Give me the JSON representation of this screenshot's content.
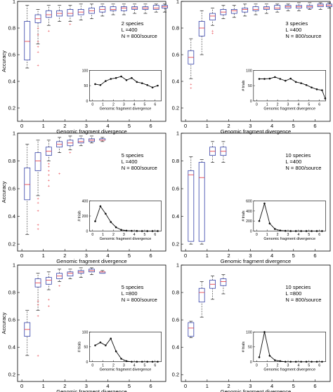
{
  "figure": {
    "colors": {
      "box": "#3340a8",
      "median": "#e8484f",
      "outlier": "#e8484f",
      "whisker": "#222222",
      "inset_line": "#111111"
    }
  },
  "chart_data": [
    {
      "type": "boxplot",
      "annotation": [
        "2 species",
        "L =400",
        "N = 800/source"
      ],
      "xlabel": "Genomic fragment divergence",
      "ylabel": "Accuracy",
      "xlim": [
        -0.2,
        6.7
      ],
      "ylim": [
        0.1,
        1.0
      ],
      "xticks": [
        "0",
        "1",
        "2",
        "3",
        "4",
        "5",
        "6"
      ],
      "yticks": [
        "0.2",
        "0.4",
        "0.6",
        "0.8",
        "1"
      ],
      "boxes": [
        {
          "x": 0.25,
          "whislo": 0.5,
          "q1": 0.56,
          "med": 0.7,
          "q3": 0.85,
          "whishi": 0.97,
          "outliers": []
        },
        {
          "x": 0.75,
          "whislo": 0.68,
          "q1": 0.84,
          "med": 0.87,
          "q3": 0.9,
          "whishi": 0.94,
          "outliers": [
            0.52,
            0.62,
            0.66,
            0.7,
            0.75,
            0.8
          ]
        },
        {
          "x": 1.25,
          "whislo": 0.82,
          "q1": 0.88,
          "med": 0.9,
          "q3": 0.93,
          "whishi": 0.97,
          "outliers": [
            0.78
          ]
        },
        {
          "x": 1.75,
          "whislo": 0.85,
          "q1": 0.89,
          "med": 0.91,
          "q3": 0.93,
          "whishi": 0.97,
          "outliers": []
        },
        {
          "x": 2.25,
          "whislo": 0.85,
          "q1": 0.89,
          "med": 0.91,
          "q3": 0.94,
          "whishi": 0.97,
          "outliers": [
            0.83
          ]
        },
        {
          "x": 2.75,
          "whislo": 0.86,
          "q1": 0.9,
          "med": 0.92,
          "q3": 0.94,
          "whishi": 0.98,
          "outliers": []
        },
        {
          "x": 3.25,
          "whislo": 0.87,
          "q1": 0.91,
          "med": 0.93,
          "q3": 0.95,
          "whishi": 0.98,
          "outliers": []
        },
        {
          "x": 3.75,
          "whislo": 0.89,
          "q1": 0.92,
          "med": 0.94,
          "q3": 0.96,
          "whishi": 0.98,
          "outliers": []
        },
        {
          "x": 4.25,
          "whislo": 0.9,
          "q1": 0.93,
          "med": 0.94,
          "q3": 0.96,
          "whishi": 0.98,
          "outliers": []
        },
        {
          "x": 4.75,
          "whislo": 0.9,
          "q1": 0.93,
          "med": 0.95,
          "q3": 0.96,
          "whishi": 0.98,
          "outliers": []
        },
        {
          "x": 5.25,
          "whislo": 0.91,
          "q1": 0.94,
          "med": 0.95,
          "q3": 0.96,
          "whishi": 0.98,
          "outliers": []
        },
        {
          "x": 5.75,
          "whislo": 0.91,
          "q1": 0.94,
          "med": 0.95,
          "q3": 0.96,
          "whishi": 0.98,
          "outliers": []
        },
        {
          "x": 6.25,
          "whislo": 0.92,
          "q1": 0.94,
          "med": 0.95,
          "q3": 0.97,
          "whishi": 0.98,
          "outliers": []
        },
        {
          "x": 6.65,
          "whislo": 0.92,
          "q1": 0.95,
          "med": 0.96,
          "q3": 0.97,
          "whishi": 0.98,
          "outliers": []
        }
      ],
      "inset": {
        "type": "line",
        "xlabel": "Genomic fragment divergence",
        "ylabel": "",
        "xlim": [
          -0.3,
          6.6
        ],
        "ylim": [
          0,
          100
        ],
        "xticks": [
          "0",
          "1",
          "2",
          "3",
          "4",
          "5",
          "6"
        ],
        "yticks": [
          "0",
          "50",
          "100"
        ],
        "x": [
          0.25,
          0.75,
          1.25,
          1.75,
          2.25,
          2.75,
          3.25,
          3.75,
          4.25,
          4.75,
          5.25,
          5.75,
          6.25
        ],
        "y": [
          55,
          52,
          65,
          72,
          75,
          80,
          68,
          75,
          62,
          58,
          52,
          44,
          50
        ]
      }
    },
    {
      "type": "boxplot",
      "annotation": [
        "3 species",
        "L =400",
        "N = 800/source"
      ],
      "xlabel": "Genomic fragment divergence",
      "ylabel": "",
      "xlim": [
        -0.2,
        6.7
      ],
      "ylim": [
        0.1,
        1.0
      ],
      "xticks": [
        "0",
        "1",
        "2",
        "3",
        "4",
        "5",
        "6"
      ],
      "yticks": [
        "0.2",
        "0.4",
        "0.6",
        "0.8",
        "1"
      ],
      "boxes": [
        {
          "x": 0.25,
          "whislo": 0.42,
          "q1": 0.53,
          "med": 0.58,
          "q3": 0.63,
          "whishi": 0.72,
          "outliers": [
            0.35,
            0.38
          ]
        },
        {
          "x": 0.75,
          "whislo": 0.6,
          "q1": 0.74,
          "med": 0.8,
          "q3": 0.85,
          "whishi": 0.93,
          "outliers": []
        },
        {
          "x": 1.25,
          "whislo": 0.82,
          "q1": 0.86,
          "med": 0.89,
          "q3": 0.91,
          "whishi": 0.95,
          "outliers": [
            0.78,
            0.76
          ]
        },
        {
          "x": 1.75,
          "whislo": 0.87,
          "q1": 0.9,
          "med": 0.92,
          "q3": 0.94,
          "whishi": 0.97,
          "outliers": []
        },
        {
          "x": 2.25,
          "whislo": 0.88,
          "q1": 0.91,
          "med": 0.93,
          "q3": 0.94,
          "whishi": 0.97,
          "outliers": []
        },
        {
          "x": 2.75,
          "whislo": 0.89,
          "q1": 0.92,
          "med": 0.94,
          "q3": 0.95,
          "whishi": 0.98,
          "outliers": []
        },
        {
          "x": 3.25,
          "whislo": 0.9,
          "q1": 0.93,
          "med": 0.94,
          "q3": 0.96,
          "whishi": 0.98,
          "outliers": []
        },
        {
          "x": 3.75,
          "whislo": 0.91,
          "q1": 0.94,
          "med": 0.95,
          "q3": 0.96,
          "whishi": 0.98,
          "outliers": []
        },
        {
          "x": 4.25,
          "whislo": 0.92,
          "q1": 0.94,
          "med": 0.95,
          "q3": 0.97,
          "whishi": 0.98,
          "outliers": []
        },
        {
          "x": 4.75,
          "whislo": 0.93,
          "q1": 0.95,
          "med": 0.96,
          "q3": 0.97,
          "whishi": 0.98,
          "outliers": []
        },
        {
          "x": 5.25,
          "whislo": 0.93,
          "q1": 0.95,
          "med": 0.96,
          "q3": 0.97,
          "whishi": 0.99,
          "outliers": []
        },
        {
          "x": 5.75,
          "whislo": 0.94,
          "q1": 0.95,
          "med": 0.96,
          "q3": 0.97,
          "whishi": 0.99,
          "outliers": []
        },
        {
          "x": 6.25,
          "whislo": 0.94,
          "q1": 0.96,
          "med": 0.97,
          "q3": 0.98,
          "whishi": 0.99,
          "outliers": []
        },
        {
          "x": 6.65,
          "whislo": 0.95,
          "q1": 0.96,
          "med": 0.97,
          "q3": 0.98,
          "whishi": 0.99,
          "outliers": []
        }
      ],
      "inset": {
        "type": "line",
        "xlabel": "Genomic fragment divergence",
        "ylabel": "# trials",
        "xlim": [
          -0.3,
          6.6
        ],
        "ylim": [
          0,
          100
        ],
        "xticks": [
          "0",
          "1",
          "2",
          "3",
          "4",
          "5",
          "6"
        ],
        "yticks": [
          "0",
          "50",
          "100"
        ],
        "x": [
          0.25,
          0.75,
          1.25,
          1.75,
          2.25,
          2.75,
          3.25,
          3.75,
          4.25,
          4.75,
          5.25,
          5.75,
          6.25,
          6.55
        ],
        "y": [
          72,
          72,
          73,
          78,
          72,
          66,
          73,
          62,
          58,
          52,
          44,
          38,
          35,
          8
        ]
      }
    },
    {
      "type": "boxplot",
      "annotation": [
        "5 species",
        "L =400",
        "N = 800/source"
      ],
      "xlabel": "Genomic fragment divergence",
      "ylabel": "Accuracy",
      "xlim": [
        -0.2,
        6.7
      ],
      "ylim": [
        0.15,
        1.0
      ],
      "xticks": [
        "0",
        "1",
        "2",
        "3",
        "4",
        "5",
        "6"
      ],
      "yticks": [
        "0.2",
        "0.4",
        "0.6",
        "0.8",
        "1"
      ],
      "boxes": [
        {
          "x": 0.25,
          "whislo": 0.27,
          "q1": 0.52,
          "med": 0.63,
          "q3": 0.75,
          "whishi": 0.92,
          "outliers": []
        },
        {
          "x": 0.75,
          "whislo": 0.55,
          "q1": 0.73,
          "med": 0.8,
          "q3": 0.86,
          "whishi": 0.95,
          "outliers": [
            0.31,
            0.34,
            0.44,
            0.5,
            0.53
          ]
        },
        {
          "x": 1.25,
          "whislo": 0.8,
          "q1": 0.84,
          "med": 0.87,
          "q3": 0.9,
          "whishi": 0.95,
          "outliers": [
            0.62,
            0.66,
            0.7,
            0.73,
            0.76,
            0.78
          ]
        },
        {
          "x": 1.75,
          "whislo": 0.86,
          "q1": 0.9,
          "med": 0.92,
          "q3": 0.94,
          "whishi": 0.97,
          "outliers": [
            0.71
          ]
        },
        {
          "x": 2.25,
          "whislo": 0.88,
          "q1": 0.91,
          "med": 0.93,
          "q3": 0.95,
          "whishi": 0.98,
          "outliers": [
            0.86
          ]
        },
        {
          "x": 2.75,
          "whislo": 0.91,
          "q1": 0.93,
          "med": 0.94,
          "q3": 0.96,
          "whishi": 0.98,
          "outliers": []
        },
        {
          "x": 3.25,
          "whislo": 0.93,
          "q1": 0.94,
          "med": 0.95,
          "q3": 0.96,
          "whishi": 0.98,
          "outliers": []
        },
        {
          "x": 3.75,
          "whislo": 0.94,
          "q1": 0.95,
          "med": 0.95,
          "q3": 0.96,
          "whishi": 0.97,
          "outliers": []
        }
      ],
      "inset": {
        "type": "line",
        "xlabel": "Genomic fragment divergence",
        "ylabel": "# trials",
        "xlim": [
          -0.3,
          6.6
        ],
        "ylim": [
          0,
          400
        ],
        "xticks": [
          "0",
          "1",
          "2",
          "3",
          "4",
          "5",
          "6"
        ],
        "yticks": [
          "0",
          "200",
          "400"
        ],
        "x": [
          0.25,
          0.75,
          1.25,
          1.75,
          2.25,
          2.75,
          3.25,
          3.75,
          4.25,
          4.75,
          5.25,
          5.75,
          6.25
        ],
        "y": [
          130,
          330,
          230,
          120,
          50,
          15,
          5,
          2,
          1,
          0,
          0,
          0,
          0
        ]
      }
    },
    {
      "type": "boxplot",
      "annotation": [
        "10 species",
        "L =400",
        "N = 800/source"
      ],
      "xlabel": "Genomic fragment divergence",
      "ylabel": "",
      "xlim": [
        -0.2,
        6.7
      ],
      "ylim": [
        0.15,
        1.0
      ],
      "xticks": [
        "0",
        "1",
        "2",
        "3",
        "4",
        "5",
        "6"
      ],
      "yticks": [
        "0.2",
        "0.4",
        "0.6",
        "0.8",
        "1"
      ],
      "boxes": [
        {
          "x": 0.25,
          "whislo": 0.2,
          "q1": 0.22,
          "med": 0.7,
          "q3": 0.73,
          "whishi": 0.83,
          "outliers": []
        },
        {
          "x": 0.75,
          "whislo": 0.2,
          "q1": 0.22,
          "med": 0.68,
          "q3": 0.79,
          "whishi": 0.81,
          "outliers": []
        },
        {
          "x": 1.25,
          "whislo": 0.79,
          "q1": 0.84,
          "med": 0.87,
          "q3": 0.9,
          "whishi": 0.94,
          "outliers": []
        },
        {
          "x": 1.75,
          "whislo": 0.79,
          "q1": 0.84,
          "med": 0.87,
          "q3": 0.9,
          "whishi": 0.94,
          "outliers": []
        }
      ],
      "inset": {
        "type": "line",
        "xlabel": "Genomic fragment divergence",
        "ylabel": "# trials",
        "xlim": [
          -0.3,
          6.6
        ],
        "ylim": [
          0,
          600
        ],
        "xticks": [
          "0",
          "1",
          "2",
          "3",
          "4",
          "5",
          "6"
        ],
        "yticks": [
          "0",
          "200",
          "400",
          "600"
        ],
        "x": [
          0.25,
          0.75,
          1.25,
          1.75,
          2.25,
          2.75,
          3.25,
          3.75,
          4.25,
          4.75,
          5.25,
          5.75,
          6.25
        ],
        "y": [
          200,
          550,
          150,
          40,
          10,
          3,
          0,
          0,
          0,
          0,
          0,
          0,
          0
        ]
      }
    },
    {
      "type": "boxplot",
      "annotation": [
        "5 species",
        "L =800",
        "N = 800/source"
      ],
      "xlabel": "Genomic fragment divergence",
      "ylabel": "Accuracy",
      "xlim": [
        -0.2,
        6.7
      ],
      "ylim": [
        0.15,
        1.0
      ],
      "xticks": [
        "0",
        "1",
        "2",
        "3",
        "4",
        "5",
        "6"
      ],
      "yticks": [
        "0.2",
        "0.4",
        "0.6",
        "0.8",
        "1"
      ],
      "boxes": [
        {
          "x": 0.25,
          "whislo": 0.34,
          "q1": 0.48,
          "med": 0.53,
          "q3": 0.58,
          "whishi": 0.67,
          "outliers": []
        },
        {
          "x": 0.75,
          "whislo": 0.67,
          "q1": 0.84,
          "med": 0.87,
          "q3": 0.9,
          "whishi": 0.94,
          "outliers": [
            0.34,
            0.63,
            0.71,
            0.74
          ]
        },
        {
          "x": 1.25,
          "whislo": 0.82,
          "q1": 0.86,
          "med": 0.89,
          "q3": 0.91,
          "whishi": 0.95,
          "outliers": [
            0.7,
            0.75
          ]
        },
        {
          "x": 1.75,
          "whislo": 0.88,
          "q1": 0.9,
          "med": 0.92,
          "q3": 0.94,
          "whishi": 0.97,
          "outliers": [
            0.85
          ]
        },
        {
          "x": 2.25,
          "whislo": 0.9,
          "q1": 0.92,
          "med": 0.94,
          "q3": 0.95,
          "whishi": 0.97,
          "outliers": []
        },
        {
          "x": 2.75,
          "whislo": 0.91,
          "q1": 0.94,
          "med": 0.95,
          "q3": 0.96,
          "whishi": 0.98,
          "outliers": []
        },
        {
          "x": 3.25,
          "whislo": 0.93,
          "q1": 0.95,
          "med": 0.96,
          "q3": 0.97,
          "whishi": 0.98,
          "outliers": []
        },
        {
          "x": 3.75,
          "whislo": 0.94,
          "q1": 0.94,
          "med": 0.95,
          "q3": 0.95,
          "whishi": 0.96,
          "outliers": []
        }
      ],
      "inset": {
        "type": "line",
        "xlabel": "Genomic fragment divergence",
        "ylabel": "# trials",
        "xlim": [
          -0.3,
          6.6
        ],
        "ylim": [
          0,
          100
        ],
        "xticks": [
          "0",
          "1",
          "2",
          "3",
          "4",
          "5",
          "6"
        ],
        "yticks": [
          "0",
          "50",
          "100"
        ],
        "x": [
          0.25,
          0.75,
          1.25,
          1.75,
          2.25,
          2.75,
          3.25,
          3.75,
          4.25,
          4.75,
          5.25,
          5.75,
          6.25
        ],
        "y": [
          55,
          65,
          55,
          78,
          35,
          10,
          2,
          0,
          0,
          0,
          0,
          0,
          0
        ]
      }
    },
    {
      "type": "boxplot",
      "annotation": [
        "10 species",
        "L =800",
        "N = 800/source"
      ],
      "xlabel": "Genomic fragment divergence",
      "ylabel": "",
      "xlim": [
        -0.2,
        6.7
      ],
      "ylim": [
        0.15,
        1.0
      ],
      "xticks": [
        "0",
        "1",
        "2",
        "3",
        "4",
        "5",
        "6"
      ],
      "yticks": [
        "0.2",
        "0.4",
        "0.6",
        "0.8",
        "1"
      ],
      "boxes": [
        {
          "x": 0.25,
          "whislo": 0.47,
          "q1": 0.48,
          "med": 0.54,
          "q3": 0.58,
          "whishi": 0.59,
          "outliers": []
        },
        {
          "x": 0.75,
          "whislo": 0.62,
          "q1": 0.73,
          "med": 0.8,
          "q3": 0.83,
          "whishi": 0.88,
          "outliers": []
        },
        {
          "x": 1.25,
          "whislo": 0.75,
          "q1": 0.83,
          "med": 0.86,
          "q3": 0.89,
          "whishi": 0.92,
          "outliers": []
        },
        {
          "x": 1.75,
          "whislo": 0.79,
          "q1": 0.85,
          "med": 0.88,
          "q3": 0.9,
          "whishi": 0.93,
          "outliers": []
        }
      ],
      "inset": {
        "type": "line",
        "xlabel": "Genomic fragment divergence",
        "ylabel": "# trials",
        "xlim": [
          -0.3,
          6.6
        ],
        "ylim": [
          0,
          100
        ],
        "xticks": [
          "0",
          "1",
          "2",
          "3",
          "4",
          "5",
          "6"
        ],
        "yticks": [
          "0",
          "50",
          "100"
        ],
        "x": [
          0.25,
          0.75,
          1.25,
          1.75,
          2.25,
          2.75,
          3.25,
          3.75,
          4.25,
          4.75,
          5.25,
          5.75,
          6.25
        ],
        "y": [
          15,
          100,
          20,
          5,
          2,
          0,
          0,
          0,
          0,
          0,
          0,
          0,
          0
        ]
      }
    }
  ]
}
